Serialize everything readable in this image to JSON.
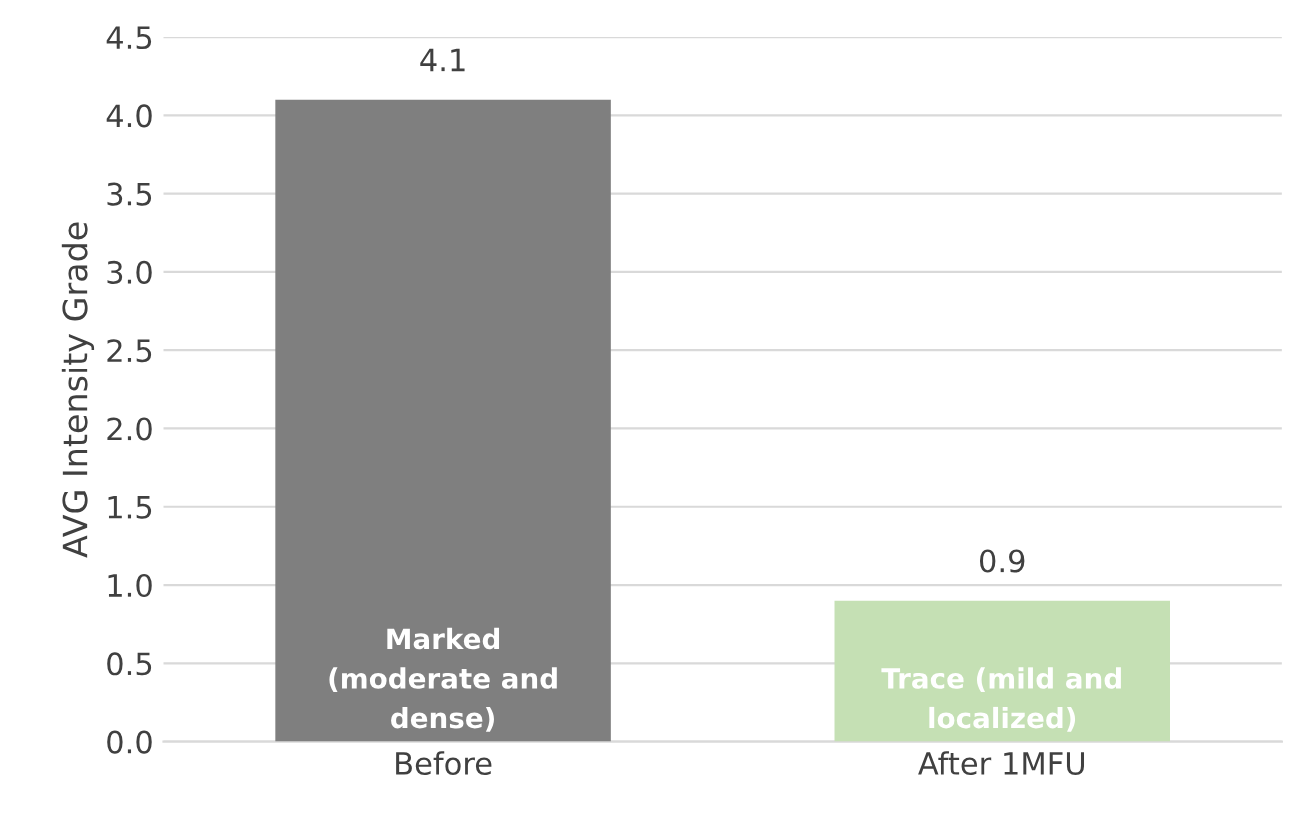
{
  "chart_data": {
    "type": "bar",
    "ylabel": "AVG Intensity Grade",
    "categories": [
      "Before",
      "After 1MFU"
    ],
    "values": [
      4.1,
      0.9
    ],
    "colors": [
      "#7f7f7f",
      "#c5e0b4"
    ],
    "ylim": [
      0,
      4.5
    ],
    "yticks": [
      {
        "value": 0,
        "label": "0.0"
      },
      {
        "value": 0.5,
        "label": "0.5"
      },
      {
        "value": 1,
        "label": "1.0"
      },
      {
        "value": 1.5,
        "label": "1.5"
      },
      {
        "value": 2,
        "label": "2.0"
      },
      {
        "value": 2.5,
        "label": "2.5"
      },
      {
        "value": 3,
        "label": "3.0"
      },
      {
        "value": 3.5,
        "label": "3.5"
      },
      {
        "value": 4,
        "label": "4.0"
      },
      {
        "value": 4.5,
        "label": "4.5"
      }
    ],
    "grid": "y",
    "data_labels": true,
    "annotations": [
      "Marked\n(moderate and\ndense)",
      "Trace (mild and\nlocalized)"
    ]
  }
}
